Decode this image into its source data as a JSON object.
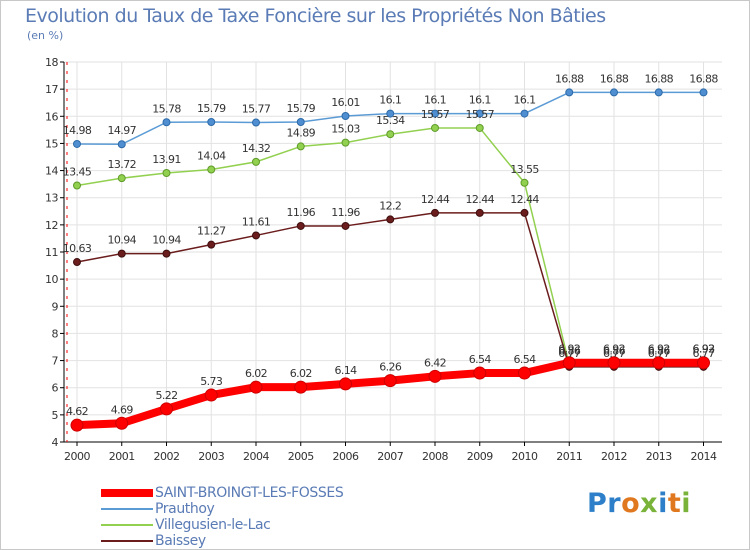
{
  "chart_data": {
    "type": "line",
    "title": "Evolution du Taux de Taxe Foncière sur les Propriétés Non Bâties",
    "ylabel": "(en %)",
    "xlabel": "",
    "ylim": [
      4,
      18
    ],
    "yticks": [
      "4",
      "5",
      "6",
      "7",
      "8",
      "9",
      "10",
      "11",
      "12",
      "13",
      "14",
      "15",
      "16",
      "17",
      "18"
    ],
    "categories": [
      "2000",
      "2001",
      "2002",
      "2003",
      "2004",
      "2005",
      "2006",
      "2007",
      "2008",
      "2009",
      "2010",
      "2011",
      "2012",
      "2013",
      "2014"
    ],
    "grid": true,
    "series": [
      {
        "name": "SAINT-BROINGT-LES-FOSSES",
        "color": "#ff0000",
        "values": [
          4.62,
          4.69,
          5.22,
          5.73,
          6.02,
          6.02,
          6.14,
          6.26,
          6.42,
          6.54,
          6.54,
          6.92,
          6.92,
          6.92,
          6.92
        ],
        "labels": [
          "4.62",
          "4.69",
          "5.22",
          "5.73",
          "6.02",
          "6.02",
          "6.14",
          "6.26",
          "6.42",
          "6.54",
          "6.54",
          "6.92",
          "6.92",
          "6.92",
          "6.92"
        ]
      },
      {
        "name": "Prauthoy",
        "color": "#5b9bd5",
        "values": [
          14.98,
          14.97,
          15.78,
          15.79,
          15.77,
          15.79,
          16.01,
          16.1,
          16.1,
          16.1,
          16.1,
          16.88,
          16.88,
          16.88,
          16.88
        ],
        "labels": [
          "14.98",
          "14.97",
          "15.78",
          "15.79",
          "15.77",
          "15.79",
          "16.01",
          "16.1",
          "16.1",
          "16.1",
          "16.1",
          "16.88",
          "16.88",
          "16.88",
          "16.88"
        ]
      },
      {
        "name": "Villegusien-le-Lac",
        "color": "#92d050",
        "values": [
          13.45,
          13.72,
          13.91,
          14.04,
          14.32,
          14.89,
          15.03,
          15.34,
          15.57,
          15.57,
          13.55,
          6.86,
          6.86,
          6.86,
          6.93
        ],
        "labels": [
          "13.45",
          "13.72",
          "13.91",
          "14.04",
          "14.32",
          "14.89",
          "15.03",
          "15.34",
          "15.57",
          "15.57",
          "13.55",
          "6.86",
          "6.86",
          "6.86",
          "6.93"
        ]
      },
      {
        "name": "Baissey",
        "color": "#6b1d1d",
        "values": [
          10.63,
          10.94,
          10.94,
          11.27,
          11.61,
          11.96,
          11.96,
          12.2,
          12.44,
          12.44,
          12.44,
          6.77,
          6.77,
          6.77,
          6.77
        ],
        "labels": [
          "10.63",
          "10.94",
          "10.94",
          "11.27",
          "11.61",
          "11.96",
          "11.96",
          "12.2",
          "12.44",
          "12.44",
          "12.44",
          "6.77",
          "6.77",
          "6.77",
          "6.77"
        ]
      }
    ]
  },
  "legend": [
    "SAINT-BROINGT-LES-FOSSES",
    "Prauthoy",
    "Villegusien-le-Lac",
    "Baissey"
  ],
  "logo": {
    "p1": "Pr",
    "o": "o",
    "x": "x",
    "i": "i",
    "t": "t",
    "i2": "i"
  }
}
